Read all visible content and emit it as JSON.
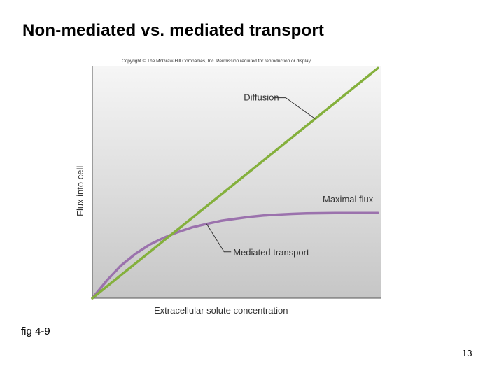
{
  "slide": {
    "title": "Non-mediated vs. mediated transport",
    "copyright": "Copyright © The McGraw-Hill Companies, Inc. Permission required for reproduction or display.",
    "caption": "fig 4-9",
    "page_number": "13"
  },
  "colors": {
    "diffusion": "#84b03c",
    "mediated": "#9b72ad",
    "plot_bg_top": "#f6f6f6",
    "plot_bg_bottom": "#c6c6c6"
  },
  "chart_data": {
    "type": "line",
    "title": "",
    "xlabel": "Extracellular solute concentration",
    "ylabel": "Flux into cell",
    "xlim": [
      0,
      1
    ],
    "ylim": [
      0,
      1
    ],
    "series": [
      {
        "name": "Diffusion",
        "x": [
          0,
          1
        ],
        "y": [
          0,
          0.99
        ]
      },
      {
        "name": "Mediated transport",
        "x": [
          0,
          0.05,
          0.1,
          0.15,
          0.2,
          0.25,
          0.3,
          0.35,
          0.4,
          0.45,
          0.5,
          0.55,
          0.6,
          0.65,
          0.7,
          0.75,
          0.8,
          0.85,
          0.9,
          0.95,
          1
        ],
        "y": [
          0,
          0.075,
          0.14,
          0.19,
          0.23,
          0.26,
          0.285,
          0.305,
          0.32,
          0.333,
          0.342,
          0.35,
          0.356,
          0.36,
          0.363,
          0.365,
          0.366,
          0.367,
          0.367,
          0.367,
          0.367
        ]
      }
    ],
    "annotations": [
      {
        "text": "Diffusion",
        "series": "Diffusion",
        "at_x": 0.78
      },
      {
        "text": "Maximal flux"
      },
      {
        "text": "Mediated transport",
        "series": "Mediated transport",
        "at_x": 0.4
      }
    ]
  }
}
